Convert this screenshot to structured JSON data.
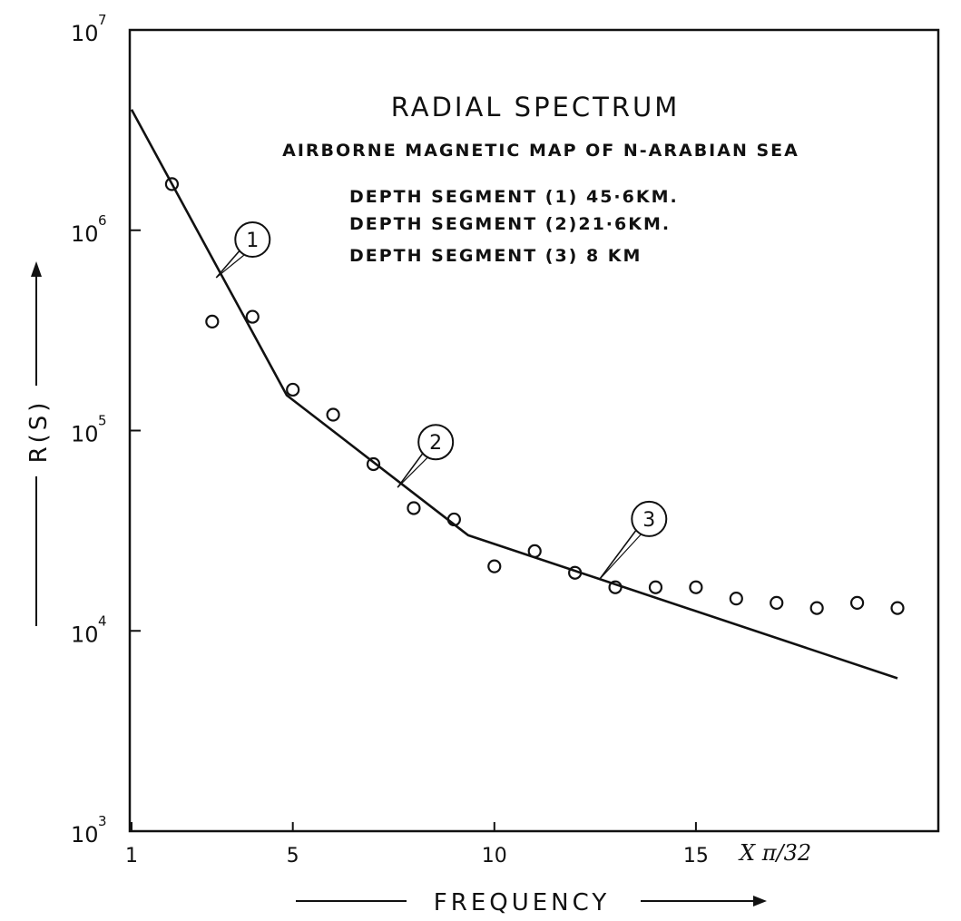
{
  "chart_data": {
    "type": "scatter",
    "title": "RADIAL SPECTRUM",
    "subtitle": "AIRBORNE MAGNETIC MAP OF N-ARABIAN SEA",
    "annotations": [
      "DEPTH SEGMENT (1) 45·6KM.",
      "DEPTH SEGMENT (2)21·6KM.",
      "DEPTH SEGMENT (3) 8 KM"
    ],
    "xlabel": "FREQUENCY",
    "xunits": "X π/32",
    "ylabel": "R(S)",
    "x_ticks": [
      1,
      5,
      10,
      15
    ],
    "y_ticks": [
      {
        "base": "10",
        "exp": "3"
      },
      {
        "base": "10",
        "exp": "4"
      },
      {
        "base": "10",
        "exp": "5"
      },
      {
        "base": "10",
        "exp": "6"
      },
      {
        "base": "10",
        "exp": "7"
      }
    ],
    "xlim": [
      1,
      20
    ],
    "ylim": [
      1000,
      10000000
    ],
    "y_scale": "log",
    "grid": false,
    "series": [
      {
        "type": "scatter",
        "marker": "open-circle",
        "points": [
          {
            "x": 2,
            "y": 1700000
          },
          {
            "x": 3,
            "y": 350000
          },
          {
            "x": 4,
            "y": 370000
          },
          {
            "x": 5,
            "y": 160000
          },
          {
            "x": 6,
            "y": 120000
          },
          {
            "x": 7,
            "y": 68000
          },
          {
            "x": 8,
            "y": 41000
          },
          {
            "x": 9,
            "y": 36000
          },
          {
            "x": 10,
            "y": 21000
          },
          {
            "x": 11,
            "y": 25000
          },
          {
            "x": 12,
            "y": 19500
          },
          {
            "x": 13,
            "y": 16500
          },
          {
            "x": 14,
            "y": 16500
          },
          {
            "x": 15,
            "y": 16500
          },
          {
            "x": 16,
            "y": 14500
          },
          {
            "x": 17,
            "y": 13800
          },
          {
            "x": 18,
            "y": 13000
          },
          {
            "x": 19,
            "y": 13800
          },
          {
            "x": 20,
            "y": 13000
          }
        ]
      },
      {
        "type": "line",
        "points": [
          {
            "x": 1,
            "y": 4000000
          },
          {
            "x": 4.85,
            "y": 150000
          },
          {
            "x": 9.35,
            "y": 30000
          },
          {
            "x": 20,
            "y": 5800
          }
        ]
      }
    ],
    "segment_labels": [
      {
        "label": "1",
        "x": 3.1,
        "y": 580000
      },
      {
        "label": "2",
        "x": 7.6,
        "y": 52000
      },
      {
        "label": "3",
        "x": 12.6,
        "y": 18000
      }
    ]
  }
}
